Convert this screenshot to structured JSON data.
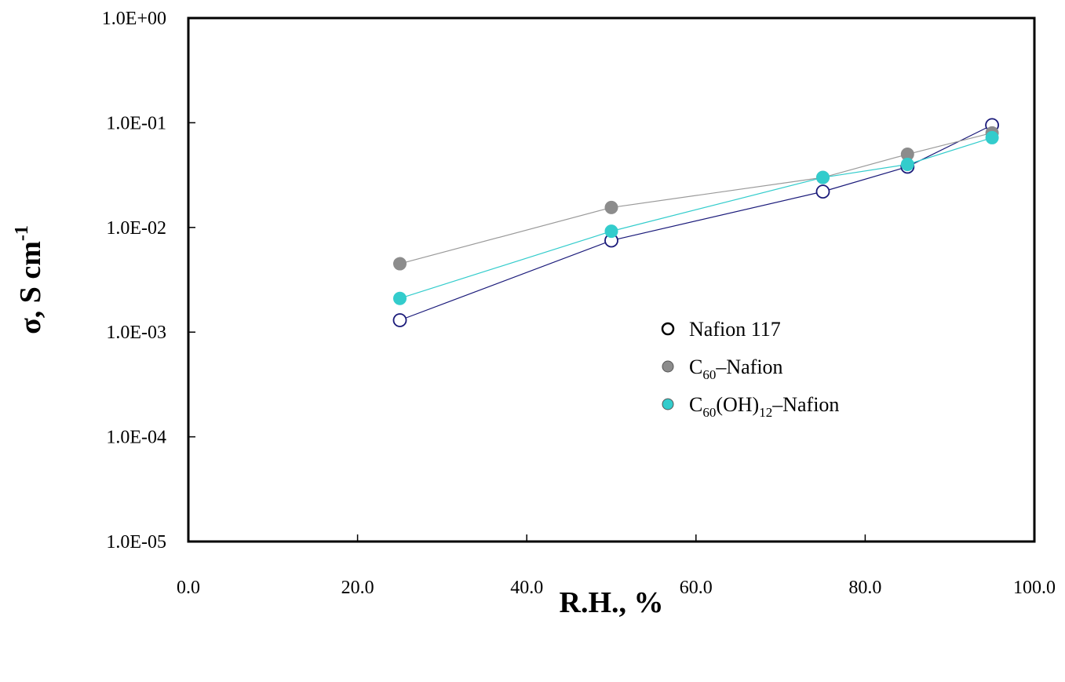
{
  "chart_data": {
    "type": "scatter",
    "title": "",
    "xlabel": "R.H., %",
    "ylabel": {
      "main": "σ, S cm",
      "sup": "-1"
    },
    "xlim": [
      0,
      100
    ],
    "ylim": [
      1e-05,
      1
    ],
    "yscale": "log",
    "grid": false,
    "legend_position": "center-right",
    "x_ticks": [
      {
        "value": 0,
        "label": "0.0"
      },
      {
        "value": 20,
        "label": "20.0"
      },
      {
        "value": 40,
        "label": "40.0"
      },
      {
        "value": 60,
        "label": "60.0"
      },
      {
        "value": 80,
        "label": "80.0"
      },
      {
        "value": 100,
        "label": "100.0"
      }
    ],
    "y_ticks": [
      {
        "value": 1,
        "label": "1.0E+00"
      },
      {
        "value": 0.1,
        "label": "1.0E-01"
      },
      {
        "value": 0.01,
        "label": "1.0E-02"
      },
      {
        "value": 0.001,
        "label": "1.0E-03"
      },
      {
        "value": 0.0001,
        "label": "1.0E-04"
      },
      {
        "value": 1e-05,
        "label": "1.0E-05"
      }
    ],
    "series": [
      {
        "key": "nafion",
        "legend": {
          "base": "Nafion 117",
          "parts": []
        },
        "marker": "open-circle",
        "line_color": "#1a1a7a",
        "marker_stroke": "#1a1a7a",
        "marker_fill": "#ffffff",
        "x": [
          25,
          50,
          75,
          85,
          95
        ],
        "y": [
          0.0013,
          0.0075,
          0.022,
          0.038,
          0.095
        ]
      },
      {
        "key": "c60",
        "legend": {
          "base": "C",
          "parts": [
            {
              "text": "60",
              "shift": "sub"
            },
            {
              "text": "–Nafion",
              "shift": ""
            }
          ]
        },
        "marker": "filled-circle",
        "line_color": "#9a9a9a",
        "marker_stroke": "#8c8c8c",
        "marker_fill": "#8c8c8c",
        "x": [
          25,
          50,
          75,
          85,
          95
        ],
        "y": [
          0.0045,
          0.0155,
          0.03,
          0.05,
          0.08
        ]
      },
      {
        "key": "c60oh",
        "legend": {
          "base": "C",
          "parts": [
            {
              "text": "60",
              "shift": "sub"
            },
            {
              "text": "(OH)",
              "shift": ""
            },
            {
              "text": "12",
              "shift": "sub"
            },
            {
              "text": "–Nafion",
              "shift": ""
            }
          ]
        },
        "marker": "filled-circle",
        "line_color": "#33cccc",
        "marker_stroke": "#33cccc",
        "marker_fill": "#33cccc",
        "x": [
          25,
          50,
          75,
          85,
          95
        ],
        "y": [
          0.0021,
          0.0092,
          0.03,
          0.04,
          0.072
        ]
      }
    ]
  }
}
